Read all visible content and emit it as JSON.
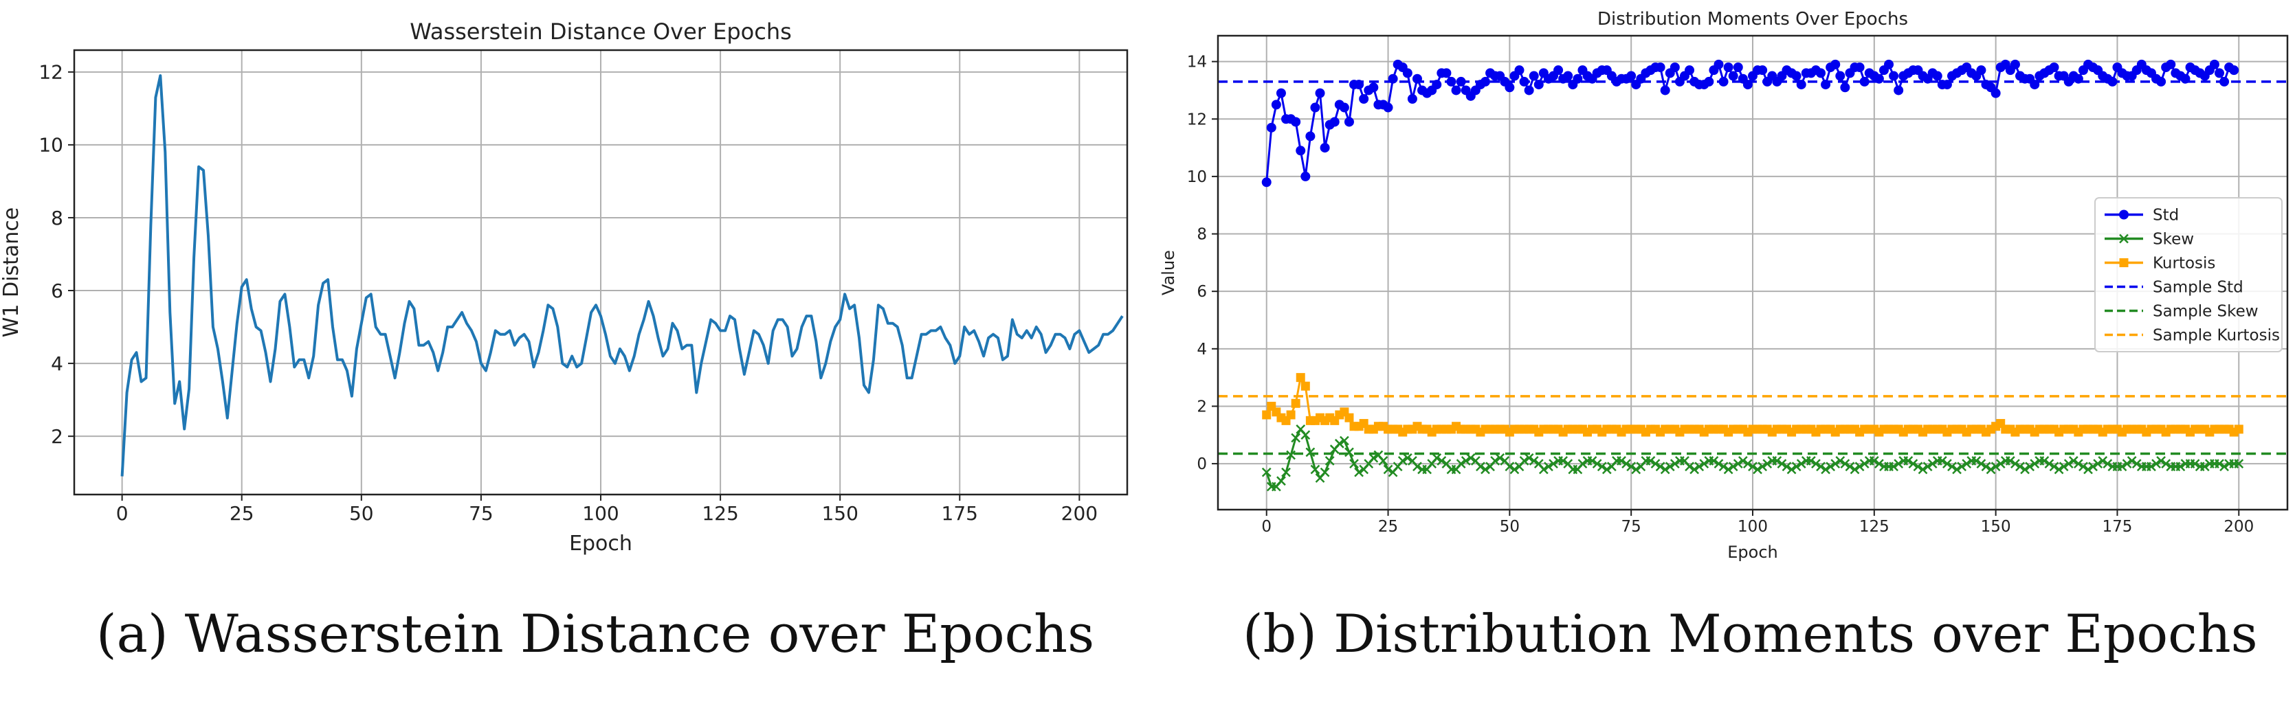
{
  "figure": {
    "caption_a": "(a) Wasserstein Distance over Epochs",
    "caption_b": "(b) Distribution Moments over Epochs"
  },
  "chart_data": [
    {
      "type": "line",
      "title": "Wasserstein Distance Over Epochs",
      "xlabel": "Epoch",
      "ylabel": "W1 Distance",
      "xlim": [
        -10,
        210
      ],
      "ylim": [
        0.4,
        12.6
      ],
      "xticks": [
        0,
        25,
        50,
        75,
        100,
        125,
        150,
        175,
        200
      ],
      "yticks": [
        2,
        4,
        6,
        8,
        10,
        12
      ],
      "grid": true,
      "legend": "none",
      "series": [
        {
          "color": "#1f77b4",
          "values": [
            0.9,
            3.2,
            4.1,
            4.3,
            3.5,
            3.6,
            7.8,
            11.3,
            11.9,
            9.8,
            5.4,
            2.9,
            3.5,
            2.2,
            3.3,
            6.9,
            9.4,
            9.3,
            7.5,
            5.0,
            4.4,
            3.5,
            2.5,
            3.8,
            5.1,
            6.1,
            6.3,
            5.5,
            5.0,
            4.9,
            4.3,
            3.5,
            4.4,
            5.7,
            5.9,
            5.0,
            3.9,
            4.1,
            4.1,
            3.6,
            4.2,
            5.6,
            6.2,
            6.3,
            5.0,
            4.1,
            4.1,
            3.8,
            3.1,
            4.4,
            5.1,
            5.8,
            5.9,
            5.0,
            4.8,
            4.8,
            4.2,
            3.6,
            4.3,
            5.1,
            5.7,
            5.5,
            4.5,
            4.5,
            4.6,
            4.3,
            3.8,
            4.3,
            5.0,
            5.0,
            5.2,
            5.4,
            5.1,
            4.9,
            4.6,
            4.0,
            3.8,
            4.3,
            4.9,
            4.8,
            4.8,
            4.9,
            4.5,
            4.7,
            4.8,
            4.6,
            3.9,
            4.3,
            4.9,
            5.6,
            5.5,
            5.0,
            4.0,
            3.9,
            4.2,
            3.9,
            4.0,
            4.7,
            5.4,
            5.6,
            5.3,
            4.8,
            4.2,
            4.0,
            4.4,
            4.2,
            3.8,
            4.2,
            4.8,
            5.2,
            5.7,
            5.3,
            4.7,
            4.2,
            4.4,
            5.1,
            4.9,
            4.4,
            4.5,
            4.5,
            3.2,
            4.0,
            4.6,
            5.2,
            5.1,
            4.9,
            4.9,
            5.3,
            5.2,
            4.4,
            3.7,
            4.3,
            4.9,
            4.8,
            4.5,
            4.0,
            4.9,
            5.2,
            5.2,
            5.0,
            4.2,
            4.4,
            5.0,
            5.3,
            5.3,
            4.6,
            3.6,
            4.0,
            4.6,
            5.0,
            5.2,
            5.9,
            5.5,
            5.6,
            4.7,
            3.4,
            3.2,
            4.1,
            5.6,
            5.5,
            5.1,
            5.1,
            5.0,
            4.5,
            3.6,
            3.6,
            4.2,
            4.8,
            4.8,
            4.9,
            4.9,
            5.0,
            4.7,
            4.5,
            4.0,
            4.2,
            5.0,
            4.8,
            4.9,
            4.6,
            4.2,
            4.7,
            4.8,
            4.7,
            4.1,
            4.2,
            5.2,
            4.8,
            4.7,
            4.9,
            4.7,
            5.0,
            4.8,
            4.3,
            4.5,
            4.8,
            4.8,
            4.7,
            4.4,
            4.8,
            4.9,
            4.6,
            4.3,
            4.4,
            4.5,
            4.8,
            4.8,
            4.9,
            5.1,
            5.3
          ]
        }
      ]
    },
    {
      "type": "line",
      "title": "Distribution Moments Over Epochs",
      "xlabel": "Epoch",
      "ylabel": "Value",
      "xlim": [
        -10,
        210
      ],
      "ylim": [
        -1.6,
        14.9
      ],
      "xticks": [
        0,
        25,
        50,
        75,
        100,
        125,
        150,
        175,
        200
      ],
      "yticks": [
        0,
        2,
        4,
        6,
        8,
        10,
        12,
        14
      ],
      "grid": true,
      "legend": "center-right",
      "series": [
        {
          "name": "Std",
          "color": "#0000ee",
          "marker": "circle",
          "values": [
            9.8,
            11.7,
            12.5,
            12.9,
            12.0,
            12.0,
            11.9,
            10.9,
            10.0,
            11.4,
            12.4,
            12.9,
            11.0,
            11.8,
            11.9,
            12.5,
            12.4,
            11.9,
            13.2,
            13.2,
            12.7,
            13.0,
            13.1,
            12.5,
            12.5,
            12.4,
            13.4,
            13.9,
            13.8,
            13.6,
            12.7,
            13.4,
            13.0,
            12.9,
            13.0,
            13.2,
            13.6,
            13.6,
            13.3,
            13.0,
            13.3,
            13.0,
            12.8,
            13.0,
            13.2,
            13.3,
            13.6,
            13.5,
            13.5,
            13.3,
            13.1,
            13.5,
            13.7,
            13.3,
            13.0,
            13.5,
            13.2,
            13.6,
            13.4,
            13.5,
            13.7,
            13.4,
            13.5,
            13.2,
            13.4,
            13.7,
            13.5,
            13.4,
            13.6,
            13.7,
            13.7,
            13.5,
            13.3,
            13.4,
            13.4,
            13.5,
            13.2,
            13.4,
            13.6,
            13.7,
            13.8,
            13.8,
            13.0,
            13.6,
            13.8,
            13.3,
            13.5,
            13.7,
            13.3,
            13.2,
            13.2,
            13.3,
            13.7,
            13.9,
            13.3,
            13.8,
            13.5,
            13.8,
            13.4,
            13.2,
            13.5,
            13.7,
            13.7,
            13.3,
            13.5,
            13.3,
            13.5,
            13.7,
            13.6,
            13.5,
            13.2,
            13.6,
            13.6,
            13.7,
            13.6,
            13.2,
            13.8,
            13.9,
            13.5,
            13.1,
            13.6,
            13.8,
            13.8,
            13.3,
            13.6,
            13.5,
            13.4,
            13.7,
            13.9,
            13.5,
            13.0,
            13.5,
            13.6,
            13.7,
            13.7,
            13.5,
            13.4,
            13.6,
            13.5,
            13.2,
            13.2,
            13.5,
            13.6,
            13.7,
            13.8,
            13.6,
            13.5,
            13.7,
            13.2,
            13.1,
            12.9,
            13.8,
            13.9,
            13.7,
            13.9,
            13.5,
            13.4,
            13.4,
            13.2,
            13.5,
            13.6,
            13.7,
            13.8,
            13.5,
            13.5,
            13.3,
            13.5,
            13.4,
            13.7,
            13.9,
            13.8,
            13.7,
            13.5,
            13.4,
            13.3,
            13.8,
            13.6,
            13.5,
            13.5,
            13.7,
            13.9,
            13.7,
            13.6,
            13.4,
            13.3,
            13.8,
            13.9,
            13.6,
            13.5,
            13.4,
            13.8,
            13.7,
            13.6,
            13.5,
            13.7,
            13.9,
            13.6,
            13.3,
            13.8,
            13.7
          ]
        },
        {
          "name": "Skew",
          "color": "#228b22",
          "marker": "x",
          "values": [
            -0.3,
            -0.8,
            -0.8,
            -0.6,
            -0.3,
            0.3,
            0.9,
            1.2,
            1.0,
            0.4,
            -0.2,
            -0.5,
            -0.3,
            0.1,
            0.5,
            0.7,
            0.8,
            0.4,
            0.0,
            -0.3,
            -0.2,
            0.0,
            0.2,
            0.3,
            0.1,
            -0.2,
            -0.3,
            -0.1,
            0.1,
            0.2,
            0.1,
            -0.1,
            -0.2,
            -0.2,
            0.0,
            0.2,
            0.1,
            0.0,
            -0.2,
            -0.2,
            0.0,
            0.1,
            0.2,
            0.1,
            -0.1,
            -0.2,
            -0.1,
            0.1,
            0.2,
            0.1,
            -0.1,
            -0.2,
            -0.1,
            0.1,
            0.2,
            0.1,
            0.0,
            -0.2,
            -0.1,
            0.0,
            0.1,
            0.1,
            0.0,
            -0.2,
            -0.2,
            0.0,
            0.1,
            0.1,
            0.0,
            -0.1,
            -0.2,
            -0.1,
            0.1,
            0.1,
            0.0,
            -0.1,
            -0.2,
            -0.1,
            0.1,
            0.1,
            0.0,
            -0.1,
            -0.2,
            -0.1,
            0.0,
            0.1,
            0.1,
            -0.1,
            -0.2,
            -0.1,
            0.0,
            0.1,
            0.1,
            0.0,
            -0.1,
            -0.2,
            -0.1,
            0.0,
            0.1,
            0.0,
            -0.1,
            -0.2,
            -0.1,
            0.0,
            0.1,
            0.1,
            0.0,
            -0.1,
            -0.2,
            -0.1,
            0.0,
            0.1,
            0.1,
            0.0,
            -0.1,
            -0.2,
            -0.1,
            0.0,
            0.1,
            0.0,
            -0.1,
            -0.2,
            -0.1,
            0.0,
            0.1,
            0.1,
            0.0,
            -0.1,
            -0.1,
            -0.1,
            0.0,
            0.1,
            0.1,
            0.0,
            -0.1,
            -0.2,
            -0.1,
            0.0,
            0.1,
            0.1,
            0.0,
            -0.1,
            -0.2,
            -0.1,
            0.0,
            0.1,
            0.1,
            0.0,
            -0.1,
            -0.2,
            -0.1,
            0.0,
            0.1,
            0.1,
            0.0,
            -0.1,
            -0.2,
            -0.1,
            0.0,
            0.1,
            0.1,
            0.0,
            -0.1,
            -0.2,
            -0.1,
            0.0,
            0.1,
            0.0,
            -0.1,
            -0.2,
            -0.1,
            0.0,
            0.1,
            0.0,
            -0.1,
            -0.1,
            -0.1,
            0.0,
            0.1,
            0.0,
            -0.1,
            -0.1,
            -0.1,
            0.0,
            0.1,
            0.0,
            -0.1,
            -0.1,
            -0.1,
            0.0,
            0.0,
            0.0,
            -0.1,
            -0.1,
            0.0,
            0.0,
            0.0,
            -0.1,
            0.0,
            0.0,
            0.0
          ]
        },
        {
          "name": "Kurtosis",
          "color": "#ffa500",
          "marker": "square",
          "values": [
            1.7,
            2.0,
            1.8,
            1.6,
            1.5,
            1.7,
            2.1,
            3.0,
            2.7,
            1.5,
            1.5,
            1.6,
            1.5,
            1.6,
            1.5,
            1.7,
            1.8,
            1.6,
            1.3,
            1.3,
            1.4,
            1.2,
            1.2,
            1.3,
            1.3,
            1.2,
            1.2,
            1.2,
            1.1,
            1.2,
            1.2,
            1.3,
            1.2,
            1.2,
            1.1,
            1.2,
            1.2,
            1.2,
            1.2,
            1.3,
            1.2,
            1.2,
            1.2,
            1.2,
            1.1,
            1.2,
            1.2,
            1.2,
            1.2,
            1.2,
            1.1,
            1.2,
            1.2,
            1.2,
            1.2,
            1.2,
            1.1,
            1.2,
            1.2,
            1.2,
            1.2,
            1.1,
            1.2,
            1.2,
            1.2,
            1.2,
            1.1,
            1.2,
            1.2,
            1.1,
            1.2,
            1.2,
            1.2,
            1.1,
            1.2,
            1.2,
            1.2,
            1.2,
            1.1,
            1.2,
            1.2,
            1.1,
            1.2,
            1.2,
            1.2,
            1.1,
            1.2,
            1.2,
            1.2,
            1.2,
            1.1,
            1.2,
            1.2,
            1.2,
            1.2,
            1.1,
            1.2,
            1.2,
            1.2,
            1.1,
            1.2,
            1.2,
            1.2,
            1.2,
            1.1,
            1.2,
            1.2,
            1.2,
            1.1,
            1.2,
            1.2,
            1.2,
            1.2,
            1.1,
            1.2,
            1.2,
            1.2,
            1.1,
            1.2,
            1.2,
            1.2,
            1.2,
            1.1,
            1.2,
            1.2,
            1.2,
            1.1,
            1.2,
            1.2,
            1.2,
            1.2,
            1.1,
            1.2,
            1.2,
            1.2,
            1.1,
            1.2,
            1.2,
            1.2,
            1.2,
            1.1,
            1.2,
            1.2,
            1.2,
            1.1,
            1.2,
            1.2,
            1.2,
            1.1,
            1.2,
            1.3,
            1.4,
            1.2,
            1.2,
            1.1,
            1.2,
            1.2,
            1.2,
            1.1,
            1.2,
            1.2,
            1.2,
            1.2,
            1.1,
            1.2,
            1.2,
            1.2,
            1.1,
            1.2,
            1.2,
            1.2,
            1.2,
            1.1,
            1.2,
            1.2,
            1.2,
            1.1,
            1.2,
            1.2,
            1.2,
            1.2,
            1.1,
            1.2,
            1.2,
            1.2,
            1.1,
            1.2,
            1.2,
            1.2,
            1.2,
            1.1,
            1.2,
            1.2,
            1.2,
            1.1,
            1.2,
            1.2,
            1.2,
            1.2,
            1.1,
            1.2
          ]
        },
        {
          "name": "Sample Std",
          "color": "#0000ee",
          "dashed": true,
          "y": 13.3
        },
        {
          "name": "Sample Skew",
          "color": "#228b22",
          "dashed": true,
          "y": 0.35
        },
        {
          "name": "Sample Kurtosis",
          "color": "#ffa500",
          "dashed": true,
          "y": 2.35
        }
      ]
    }
  ]
}
